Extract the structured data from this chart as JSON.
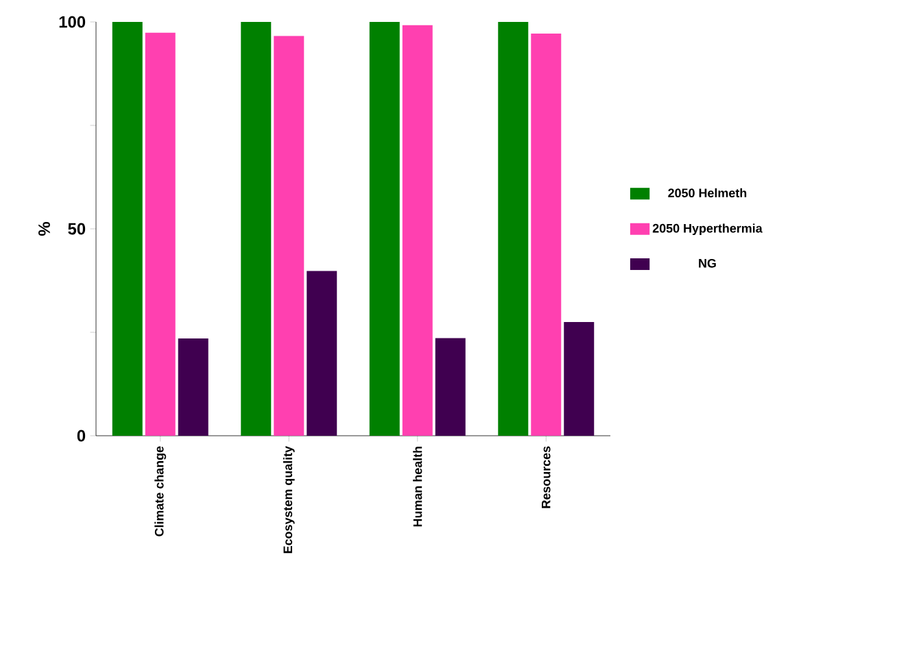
{
  "chart_data": {
    "type": "bar",
    "ylabel": "%",
    "categories": [
      "Climate change",
      "Ecosystem quality",
      "Human health",
      "Resources"
    ],
    "series": [
      {
        "name": "2050 Helmeth",
        "color": "#008000",
        "values": [
          100,
          100,
          100,
          100
        ]
      },
      {
        "name": "2050 Hyperthermia",
        "color": "#ff40b0",
        "values": [
          97.4,
          96.6,
          99.2,
          97.2
        ]
      },
      {
        "name": "NG",
        "color": "#400050",
        "values": [
          23.5,
          39.8,
          23.6,
          27.5
        ]
      }
    ],
    "ylim": [
      0,
      100
    ],
    "yticks": [
      0,
      {
        "value": 25,
        "label": null
      },
      50,
      {
        "value": 75,
        "label": null
      },
      100
    ],
    "legend": "right",
    "grid": false
  }
}
